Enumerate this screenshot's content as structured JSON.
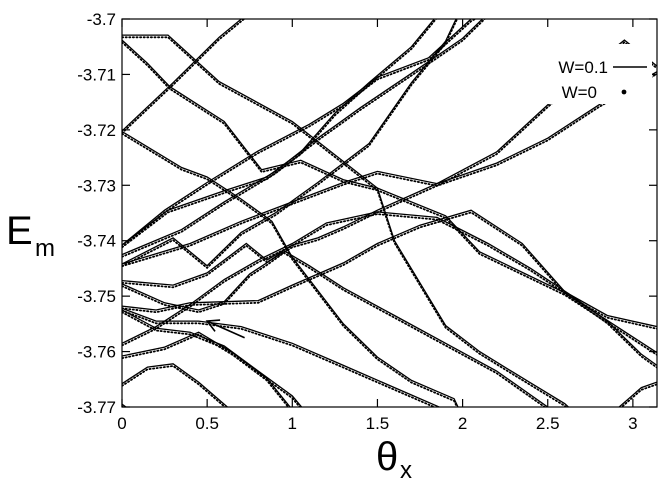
{
  "chart_data": {
    "type": "line",
    "xlabel": "θ",
    "xlabel_sub": "x",
    "ylabel": "E",
    "ylabel_sub": "m",
    "xlim": [
      0,
      3.1416
    ],
    "ylim": [
      -3.77,
      -3.7
    ],
    "xticks": [
      {
        "value": 0,
        "label": "0"
      },
      {
        "value": 0.5,
        "label": "0.5"
      },
      {
        "value": 1,
        "label": "1"
      },
      {
        "value": 1.5,
        "label": "1.5"
      },
      {
        "value": 2,
        "label": "2"
      },
      {
        "value": 2.5,
        "label": "2.5"
      },
      {
        "value": 3,
        "label": "3"
      }
    ],
    "yticks": [
      {
        "value": -3.7,
        "label": "-3.7"
      },
      {
        "value": -3.71,
        "label": "-3.71"
      },
      {
        "value": -3.72,
        "label": "-3.72"
      },
      {
        "value": -3.73,
        "label": "-3.73"
      },
      {
        "value": -3.74,
        "label": "-3.74"
      },
      {
        "value": -3.75,
        "label": "-3.75"
      },
      {
        "value": -3.76,
        "label": "-3.76"
      },
      {
        "value": -3.77,
        "label": "-3.77"
      }
    ],
    "grid": false,
    "legend_position": "top-right",
    "series": [
      {
        "name": "W=0.1",
        "style": "solid line",
        "color": "#000000"
      },
      {
        "name": "W=0",
        "style": "dots",
        "color": "#000000"
      }
    ],
    "annotation": {
      "type": "arrow",
      "at": [
        0.5,
        -3.7545
      ],
      "from": [
        0.72,
        -3.7575
      ]
    },
    "bands": [
      [
        [
          0,
          -3.7029
        ],
        [
          0.27,
          -3.7029
        ],
        [
          0.57,
          -3.7113
        ],
        [
          1.0,
          -3.7185
        ],
        [
          1.5,
          -3.7305
        ],
        [
          1.9,
          -3.7355
        ],
        [
          2.1,
          -3.742
        ],
        [
          2.6,
          -3.7494
        ],
        [
          3.1416,
          -3.7602
        ]
      ],
      [
        [
          0,
          -3.7038
        ],
        [
          0.15,
          -3.708
        ],
        [
          0.28,
          -3.7122
        ],
        [
          0.6,
          -3.7185
        ],
        [
          0.82,
          -3.7272
        ],
        [
          1.05,
          -3.7255
        ],
        [
          1.3,
          -3.729
        ],
        [
          1.5,
          -3.7305
        ],
        [
          1.6,
          -3.74
        ],
        [
          1.9,
          -3.7553
        ],
        [
          2.1,
          -3.76
        ],
        [
          2.3,
          -3.7638
        ],
        [
          2.6,
          -3.7694
        ],
        [
          2.8,
          -3.775
        ]
      ],
      [
        [
          0,
          -3.7202
        ],
        [
          0.3,
          -3.7115
        ],
        [
          0.57,
          -3.7033
        ],
        [
          0.8,
          -3.6975
        ]
      ],
      [
        [
          0,
          -3.7203
        ],
        [
          0.35,
          -3.7268
        ],
        [
          0.5,
          -3.7285
        ],
        [
          0.7,
          -3.7325
        ],
        [
          0.88,
          -3.7365
        ],
        [
          1.0,
          -3.743
        ],
        [
          1.3,
          -3.755
        ],
        [
          1.5,
          -3.761
        ],
        [
          1.7,
          -3.7652
        ],
        [
          1.95,
          -3.7685
        ],
        [
          2.05,
          -3.775
        ]
      ],
      [
        [
          0,
          -3.7408
        ],
        [
          0.25,
          -3.7345
        ],
        [
          0.5,
          -3.7295
        ],
        [
          0.8,
          -3.7238
        ],
        [
          1.1,
          -3.719
        ],
        [
          1.3,
          -3.7152
        ],
        [
          1.5,
          -3.7105
        ],
        [
          1.8,
          -3.707
        ],
        [
          2.05,
          -3.7
        ],
        [
          2.2,
          -3.6975
        ]
      ],
      [
        [
          0,
          -3.7408
        ],
        [
          0.27,
          -3.7345
        ],
        [
          0.6,
          -3.731
        ],
        [
          0.85,
          -3.7285
        ],
        [
          1.05,
          -3.724
        ],
        [
          1.25,
          -3.717
        ],
        [
          1.45,
          -3.7115
        ],
        [
          1.7,
          -3.705
        ],
        [
          1.9,
          -3.6975
        ]
      ],
      [
        [
          0,
          -3.7425
        ],
        [
          0.35,
          -3.738
        ],
        [
          0.6,
          -3.733
        ],
        [
          0.9,
          -3.7275
        ],
        [
          1.15,
          -3.7215
        ],
        [
          1.4,
          -3.716
        ],
        [
          1.7,
          -3.7098
        ],
        [
          2.0,
          -3.7035
        ],
        [
          2.2,
          -3.6975
        ]
      ],
      [
        [
          0,
          -3.7442
        ],
        [
          0.4,
          -3.7405
        ],
        [
          0.7,
          -3.7365
        ],
        [
          1.0,
          -3.733
        ],
        [
          1.3,
          -3.7295
        ],
        [
          1.5,
          -3.7275
        ],
        [
          1.85,
          -3.7297
        ],
        [
          2.2,
          -3.724
        ],
        [
          2.5,
          -3.7155
        ],
        [
          2.8,
          -3.7075
        ],
        [
          2.95,
          -3.7038
        ],
        [
          3.1416,
          -3.7085
        ]
      ],
      [
        [
          0,
          -3.7442
        ],
        [
          0.3,
          -3.7395
        ],
        [
          0.5,
          -3.7445
        ],
        [
          0.7,
          -3.7385
        ],
        [
          0.9,
          -3.735
        ],
        [
          1.15,
          -3.7295
        ],
        [
          1.45,
          -3.7225
        ],
        [
          1.7,
          -3.7115
        ],
        [
          1.9,
          -3.704
        ],
        [
          2.0,
          -3.6975
        ]
      ],
      [
        [
          0,
          -3.7472
        ],
        [
          0.3,
          -3.748
        ],
        [
          0.5,
          -3.7458
        ],
        [
          0.73,
          -3.7405
        ],
        [
          0.85,
          -3.7435
        ],
        [
          1.0,
          -3.7408
        ],
        [
          1.15,
          -3.7395
        ],
        [
          1.3,
          -3.7375
        ],
        [
          1.5,
          -3.7345
        ],
        [
          1.85,
          -3.7297
        ],
        [
          2.2,
          -3.726
        ],
        [
          2.5,
          -3.7215
        ],
        [
          2.8,
          -3.7155
        ],
        [
          3.1416,
          -3.7095
        ]
      ],
      [
        [
          0,
          -3.7478
        ],
        [
          0.25,
          -3.7512
        ],
        [
          0.45,
          -3.7525
        ],
        [
          0.6,
          -3.751
        ],
        [
          0.75,
          -3.746
        ],
        [
          0.85,
          -3.744
        ],
        [
          0.95,
          -3.7418
        ],
        [
          1.1,
          -3.7445
        ],
        [
          1.3,
          -3.7485
        ],
        [
          1.6,
          -3.7535
        ],
        [
          1.9,
          -3.7585
        ],
        [
          2.2,
          -3.7635
        ],
        [
          2.5,
          -3.77
        ],
        [
          2.7,
          -3.775
        ]
      ],
      [
        [
          0,
          -3.7518
        ],
        [
          0.2,
          -3.7525
        ],
        [
          0.4,
          -3.7512
        ],
        [
          0.6,
          -3.751
        ],
        [
          0.8,
          -3.7508
        ],
        [
          1.0,
          -3.748
        ],
        [
          1.3,
          -3.744
        ],
        [
          1.5,
          -3.7405
        ],
        [
          1.75,
          -3.7372
        ],
        [
          2.05,
          -3.7345
        ],
        [
          2.35,
          -3.7405
        ],
        [
          2.6,
          -3.7492
        ],
        [
          2.85,
          -3.7535
        ],
        [
          3.1416,
          -3.7555
        ]
      ],
      [
        [
          0,
          -3.7522
        ],
        [
          0.2,
          -3.7545
        ],
        [
          0.45,
          -3.7545
        ],
        [
          0.7,
          -3.7555
        ],
        [
          1.0,
          -3.7585
        ],
        [
          1.3,
          -3.7625
        ],
        [
          1.6,
          -3.7665
        ],
        [
          1.9,
          -3.7705
        ],
        [
          2.2,
          -3.7745
        ],
        [
          2.3,
          -3.776
        ]
      ],
      [
        [
          0,
          -3.7525
        ],
        [
          0.2,
          -3.7558
        ],
        [
          0.4,
          -3.7565
        ],
        [
          0.6,
          -3.759
        ],
        [
          0.8,
          -3.7635
        ],
        [
          1.0,
          -3.768
        ],
        [
          1.15,
          -3.7735
        ],
        [
          1.2,
          -3.7755
        ]
      ],
      [
        [
          0,
          -3.7585
        ],
        [
          0.2,
          -3.7555
        ],
        [
          0.4,
          -3.7515
        ],
        [
          0.6,
          -3.747
        ],
        [
          0.8,
          -3.7435
        ],
        [
          1.0,
          -3.7405
        ],
        [
          1.2,
          -3.7368
        ],
        [
          1.5,
          -3.7348
        ],
        [
          1.85,
          -3.7358
        ],
        [
          2.15,
          -3.7405
        ],
        [
          2.4,
          -3.745
        ],
        [
          2.62,
          -3.7495
        ],
        [
          2.85,
          -3.7545
        ],
        [
          3.05,
          -3.7605
        ],
        [
          3.1416,
          -3.7625
        ]
      ],
      [
        [
          0,
          -3.7608
        ],
        [
          0.25,
          -3.7592
        ],
        [
          0.45,
          -3.7565
        ],
        [
          0.65,
          -3.7602
        ],
        [
          0.85,
          -3.7648
        ],
        [
          1.0,
          -3.7705
        ],
        [
          1.1,
          -3.7755
        ]
      ],
      [
        [
          0,
          -3.7658
        ],
        [
          0.15,
          -3.7628
        ],
        [
          0.3,
          -3.7622
        ],
        [
          0.45,
          -3.7655
        ],
        [
          0.6,
          -3.7695
        ],
        [
          0.75,
          -3.7735
        ],
        [
          0.85,
          -3.7755
        ]
      ],
      [
        [
          0,
          -3.7695
        ],
        [
          0.15,
          -3.7728
        ],
        [
          0.3,
          -3.7755
        ]
      ],
      [
        [
          1.85,
          -3.7755
        ],
        [
          2.0,
          -3.7745
        ],
        [
          2.15,
          -3.7755
        ]
      ],
      [
        [
          2.75,
          -3.7755
        ],
        [
          2.9,
          -3.7705
        ],
        [
          3.05,
          -3.7665
        ],
        [
          3.1416,
          -3.7655
        ]
      ]
    ]
  }
}
